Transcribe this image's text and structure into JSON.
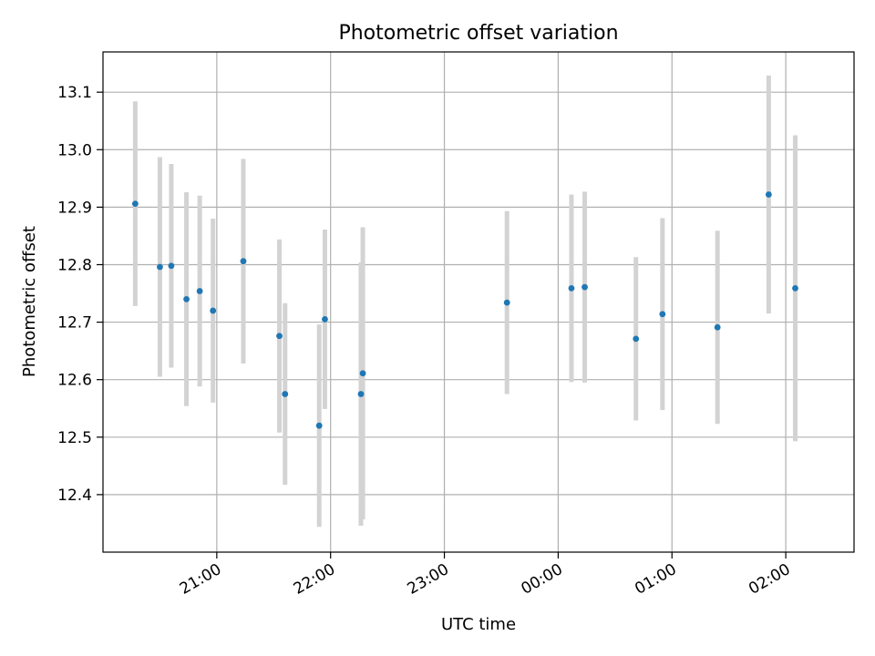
{
  "chart_data": {
    "type": "scatter",
    "title": "Photometric offset variation",
    "xlabel": "UTC time",
    "ylabel": "Photometric offset",
    "x_axis": "time",
    "xlim": [
      "20:00",
      "02:36"
    ],
    "ylim": [
      12.3,
      13.17
    ],
    "x_ticks": [
      "21:00",
      "22:00",
      "23:00",
      "00:00",
      "01:00",
      "02:00"
    ],
    "y_ticks": [
      12.4,
      12.5,
      12.6,
      12.7,
      12.8,
      12.9,
      13.0,
      13.1
    ],
    "grid": true,
    "point_color": "#1f77b4",
    "errorbar_color": "#d3d3d3",
    "points": [
      {
        "time": "20:17",
        "y": 12.906,
        "err": 0.178
      },
      {
        "time": "20:30",
        "y": 12.796,
        "err": 0.191
      },
      {
        "time": "20:36",
        "y": 12.798,
        "err": 0.177
      },
      {
        "time": "20:44",
        "y": 12.74,
        "err": 0.186
      },
      {
        "time": "20:51",
        "y": 12.754,
        "err": 0.166
      },
      {
        "time": "20:58",
        "y": 12.72,
        "err": 0.16
      },
      {
        "time": "21:14",
        "y": 12.806,
        "err": 0.178
      },
      {
        "time": "21:33",
        "y": 12.676,
        "err": 0.168
      },
      {
        "time": "21:36",
        "y": 12.575,
        "err": 0.158
      },
      {
        "time": "21:54",
        "y": 12.52,
        "err": 0.176
      },
      {
        "time": "21:57",
        "y": 12.705,
        "err": 0.156
      },
      {
        "time": "22:16",
        "y": 12.575,
        "err": 0.229
      },
      {
        "time": "22:17",
        "y": 12.611,
        "err": 0.254
      },
      {
        "time": "23:33",
        "y": 12.734,
        "err": 0.159
      },
      {
        "time": "00:07",
        "y": 12.759,
        "err": 0.163
      },
      {
        "time": "00:14",
        "y": 12.761,
        "err": 0.166
      },
      {
        "time": "00:41",
        "y": 12.671,
        "err": 0.142
      },
      {
        "time": "00:55",
        "y": 12.714,
        "err": 0.167
      },
      {
        "time": "01:24",
        "y": 12.691,
        "err": 0.168
      },
      {
        "time": "01:51",
        "y": 12.922,
        "err": 0.207
      },
      {
        "time": "02:05",
        "y": 12.759,
        "err": 0.266
      }
    ]
  }
}
